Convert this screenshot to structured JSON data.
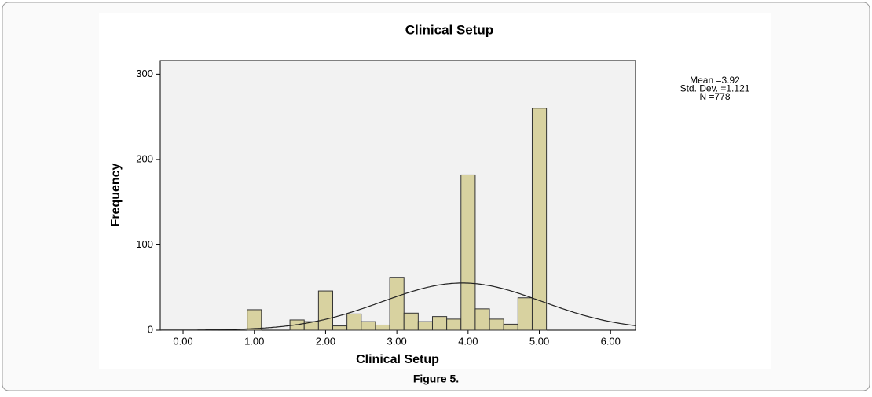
{
  "chart_data": {
    "type": "histogram",
    "title": "Clinical Setup",
    "xlabel": "Clinical Setup",
    "ylabel": "Frequency",
    "bins": [
      0.9,
      1.1,
      1.3,
      1.5,
      1.7,
      1.9,
      2.1,
      2.3,
      2.5,
      2.7,
      2.9,
      3.1,
      3.3,
      3.5,
      3.7,
      3.9,
      4.1,
      4.3,
      4.5,
      4.7,
      4.9,
      5.1
    ],
    "values": [
      24,
      0,
      0,
      12,
      10,
      46,
      5,
      19,
      10,
      6,
      62,
      20,
      10,
      16,
      13,
      182,
      25,
      13,
      7,
      38,
      260
    ],
    "color": "#d8d2a0",
    "xlim": [
      -0.32,
      6.35
    ],
    "xticks": [
      {
        "value": 0,
        "label": "0.00"
      },
      {
        "value": 1,
        "label": "1.00"
      },
      {
        "value": 2,
        "label": "2.00"
      },
      {
        "value": 3,
        "label": "3.00"
      },
      {
        "value": 4,
        "label": "4.00"
      },
      {
        "value": 5,
        "label": "5.00"
      },
      {
        "value": 6,
        "label": "6.00"
      }
    ],
    "ylim": [
      0,
      316
    ],
    "yticks": [
      0,
      100,
      200,
      300
    ],
    "normal_curve": {
      "mean": 3.92,
      "std": 1.121,
      "n": 778
    },
    "stats_labels": [
      "Mean =3.92",
      "Std. Dev. =1.121",
      "N =778"
    ]
  },
  "caption": "Figure 5."
}
